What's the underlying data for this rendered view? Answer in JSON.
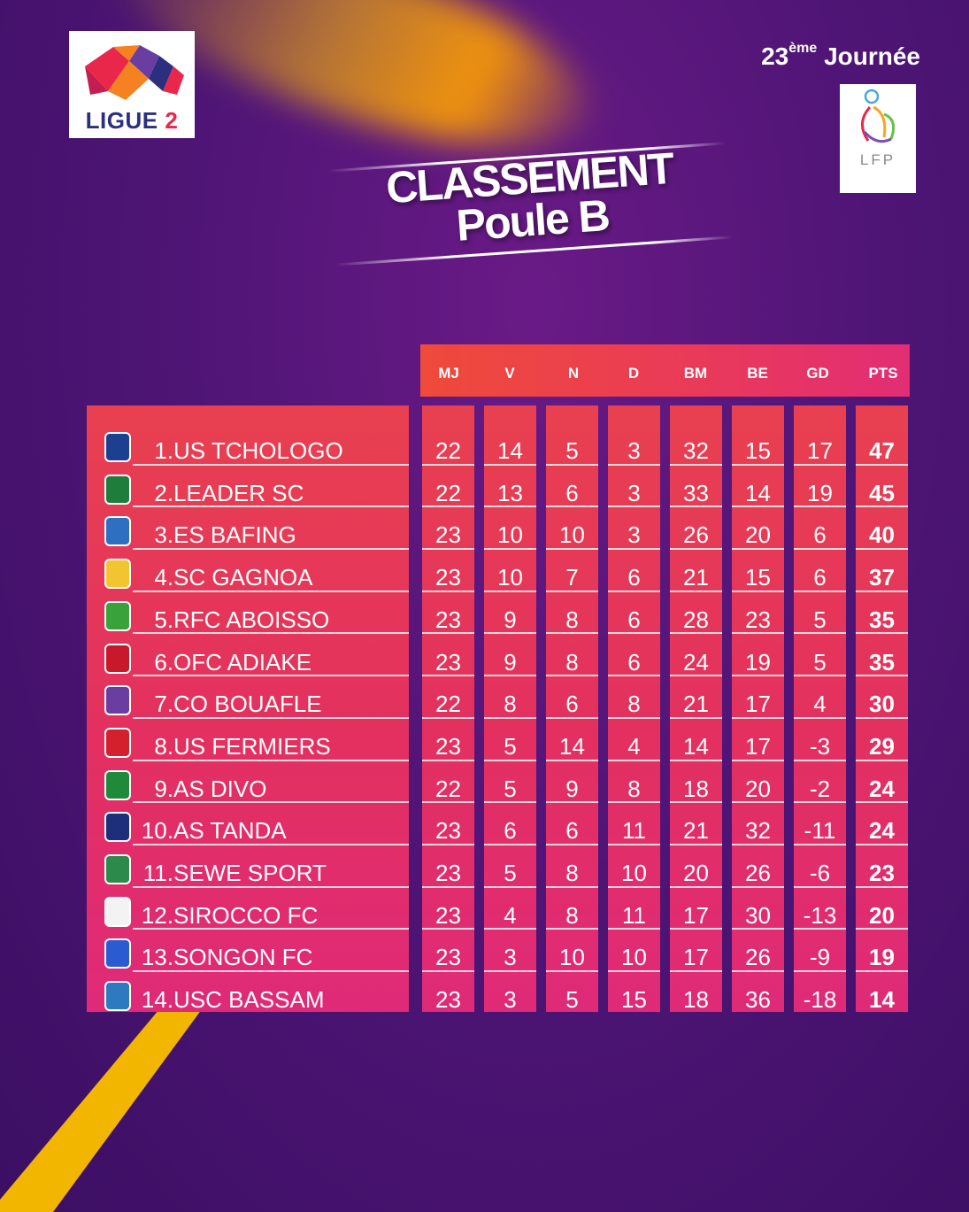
{
  "logo": {
    "text_main": "LIGUE",
    "text_num": "2"
  },
  "journee": {
    "number": "23",
    "suffix": "ème",
    "label": "Journée"
  },
  "lfp_logo": {
    "text": "LFP"
  },
  "title": {
    "line1": "CLASSEMENT",
    "line2": "Poule B"
  },
  "table": {
    "headers": [
      "MJ",
      "V",
      "N",
      "D",
      "BM",
      "BE",
      "GD",
      "PTS"
    ],
    "rows": [
      {
        "rank": "1.",
        "team": "US TCHOLOGO",
        "crest_color": "#1d3f8f",
        "values": [
          "22",
          "14",
          "5",
          "3",
          "32",
          "15",
          "17",
          "47"
        ]
      },
      {
        "rank": "2.",
        "team": "LEADER SC",
        "crest_color": "#1e7d3a",
        "values": [
          "22",
          "13",
          "6",
          "3",
          "33",
          "14",
          "19",
          "45"
        ]
      },
      {
        "rank": "3.",
        "team": "ES BAFING",
        "crest_color": "#2f6fc1",
        "values": [
          "23",
          "10",
          "10",
          "3",
          "26",
          "20",
          "6",
          "40"
        ]
      },
      {
        "rank": "4.",
        "team": "SC GAGNOA",
        "crest_color": "#f2c530",
        "values": [
          "23",
          "10",
          "7",
          "6",
          "21",
          "15",
          "6",
          "37"
        ]
      },
      {
        "rank": "5.",
        "team": "RFC ABOISSO",
        "crest_color": "#3aa23a",
        "values": [
          "23",
          "9",
          "8",
          "6",
          "28",
          "23",
          "5",
          "35"
        ]
      },
      {
        "rank": "6.",
        "team": "OFC ADIAKE",
        "crest_color": "#c8192b",
        "values": [
          "23",
          "9",
          "8",
          "6",
          "24",
          "19",
          "5",
          "35"
        ]
      },
      {
        "rank": "7.",
        "team": "CO BOUAFLE",
        "crest_color": "#6a3ea1",
        "values": [
          "22",
          "8",
          "6",
          "8",
          "21",
          "17",
          "4",
          "30"
        ]
      },
      {
        "rank": "8.",
        "team": "US FERMIERS",
        "crest_color": "#d41f2c",
        "values": [
          "23",
          "5",
          "14",
          "4",
          "14",
          "17",
          "-3",
          "29"
        ]
      },
      {
        "rank": "9.",
        "team": "AS DIVO",
        "crest_color": "#1f8a3a",
        "values": [
          "22",
          "5",
          "9",
          "8",
          "18",
          "20",
          "-2",
          "24"
        ]
      },
      {
        "rank": "10.",
        "team": "AS TANDA",
        "crest_color": "#1d2f7a",
        "values": [
          "23",
          "6",
          "6",
          "11",
          "21",
          "32",
          "-11",
          "24"
        ]
      },
      {
        "rank": "11.",
        "team": "SEWE SPORT",
        "crest_color": "#2c8a4a",
        "values": [
          "23",
          "5",
          "8",
          "10",
          "20",
          "26",
          "-6",
          "23"
        ]
      },
      {
        "rank": "12.",
        "team": "SIROCCO FC",
        "crest_color": "#f3f3f3",
        "values": [
          "23",
          "4",
          "8",
          "11",
          "17",
          "30",
          "-13",
          "20"
        ]
      },
      {
        "rank": "13.",
        "team": "SONGON FC",
        "crest_color": "#2a5bd0",
        "values": [
          "23",
          "3",
          "10",
          "10",
          "17",
          "26",
          "-9",
          "19"
        ]
      },
      {
        "rank": "14.",
        "team": "USC BASSAM",
        "crest_color": "#2d7ac0",
        "values": [
          "23",
          "3",
          "5",
          "15",
          "18",
          "36",
          "-18",
          "14"
        ]
      }
    ]
  }
}
